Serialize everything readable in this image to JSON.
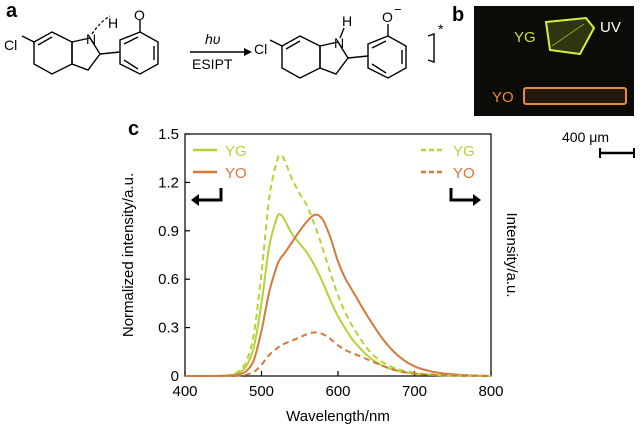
{
  "panels": {
    "a": "a",
    "b": "b",
    "c": "c"
  },
  "scheme": {
    "cl_left": "Cl",
    "cl_right": "Cl",
    "n_left": "N",
    "h_left": "H",
    "o_left": "O",
    "n_right": "N",
    "h_right": "H",
    "o_right": "O",
    "charge": "−",
    "excited": "*",
    "arrow_top": "hυ",
    "arrow_bottom": "ESIPT"
  },
  "photo": {
    "uv_label": "UV",
    "yg_label": "YG",
    "yo_label": "YO"
  },
  "scale_bar": {
    "label": "400 μm"
  },
  "colors": {
    "yg": "#b5d334",
    "yo": "#d4783c",
    "photo_bg": "#0b0b08"
  },
  "chart_data": {
    "type": "line",
    "xlabel": "Wavelength/nm",
    "ylabel_left": "Normalized intensity/a.u.",
    "ylabel_right": "Intensity/a.u.",
    "xlim": [
      400,
      800
    ],
    "ylim": [
      0,
      1.5
    ],
    "xticks": [
      "400",
      "500",
      "600",
      "700",
      "800"
    ],
    "yticks": [
      "0",
      "0.3",
      "0.6",
      "0.9",
      "1.2",
      "1.5"
    ],
    "legend_left": [
      "YG",
      "YO"
    ],
    "legend_right": [
      "YG",
      "YO"
    ],
    "x": [
      400,
      420,
      440,
      460,
      470,
      480,
      490,
      500,
      510,
      520,
      525,
      530,
      540,
      550,
      560,
      570,
      580,
      590,
      600,
      610,
      620,
      640,
      660,
      680,
      700,
      720,
      740,
      760,
      780,
      800
    ],
    "series": [
      {
        "name": "YG",
        "style": "solid",
        "color": "#b5d334",
        "values": [
          0,
          0,
          0,
          0.005,
          0.02,
          0.06,
          0.18,
          0.45,
          0.8,
          0.98,
          1.0,
          0.97,
          0.88,
          0.82,
          0.76,
          0.68,
          0.58,
          0.47,
          0.37,
          0.29,
          0.22,
          0.12,
          0.06,
          0.03,
          0.015,
          0.008,
          0.004,
          0.002,
          0.001,
          0
        ]
      },
      {
        "name": "YO",
        "style": "solid",
        "color": "#d4783c",
        "values": [
          0,
          0,
          0,
          0.003,
          0.01,
          0.03,
          0.1,
          0.28,
          0.52,
          0.68,
          0.73,
          0.76,
          0.83,
          0.9,
          0.96,
          1.0,
          0.97,
          0.86,
          0.71,
          0.6,
          0.52,
          0.36,
          0.22,
          0.12,
          0.06,
          0.03,
          0.015,
          0.007,
          0.003,
          0
        ]
      },
      {
        "name": "YG",
        "style": "dashed",
        "color": "#b5d334",
        "values": [
          0,
          0,
          0,
          0.008,
          0.03,
          0.09,
          0.26,
          0.64,
          1.1,
          1.33,
          1.37,
          1.34,
          1.22,
          1.13,
          1.05,
          0.93,
          0.79,
          0.64,
          0.5,
          0.39,
          0.3,
          0.16,
          0.08,
          0.04,
          0.02,
          0.01,
          0.005,
          0.003,
          0.001,
          0
        ]
      },
      {
        "name": "YO",
        "style": "dashed",
        "color": "#d4783c",
        "values": [
          0,
          0,
          0,
          0.001,
          0.003,
          0.008,
          0.025,
          0.07,
          0.13,
          0.17,
          0.19,
          0.2,
          0.22,
          0.24,
          0.26,
          0.27,
          0.26,
          0.23,
          0.19,
          0.16,
          0.14,
          0.1,
          0.06,
          0.03,
          0.015,
          0.008,
          0.004,
          0.002,
          0.001,
          0
        ]
      }
    ]
  }
}
